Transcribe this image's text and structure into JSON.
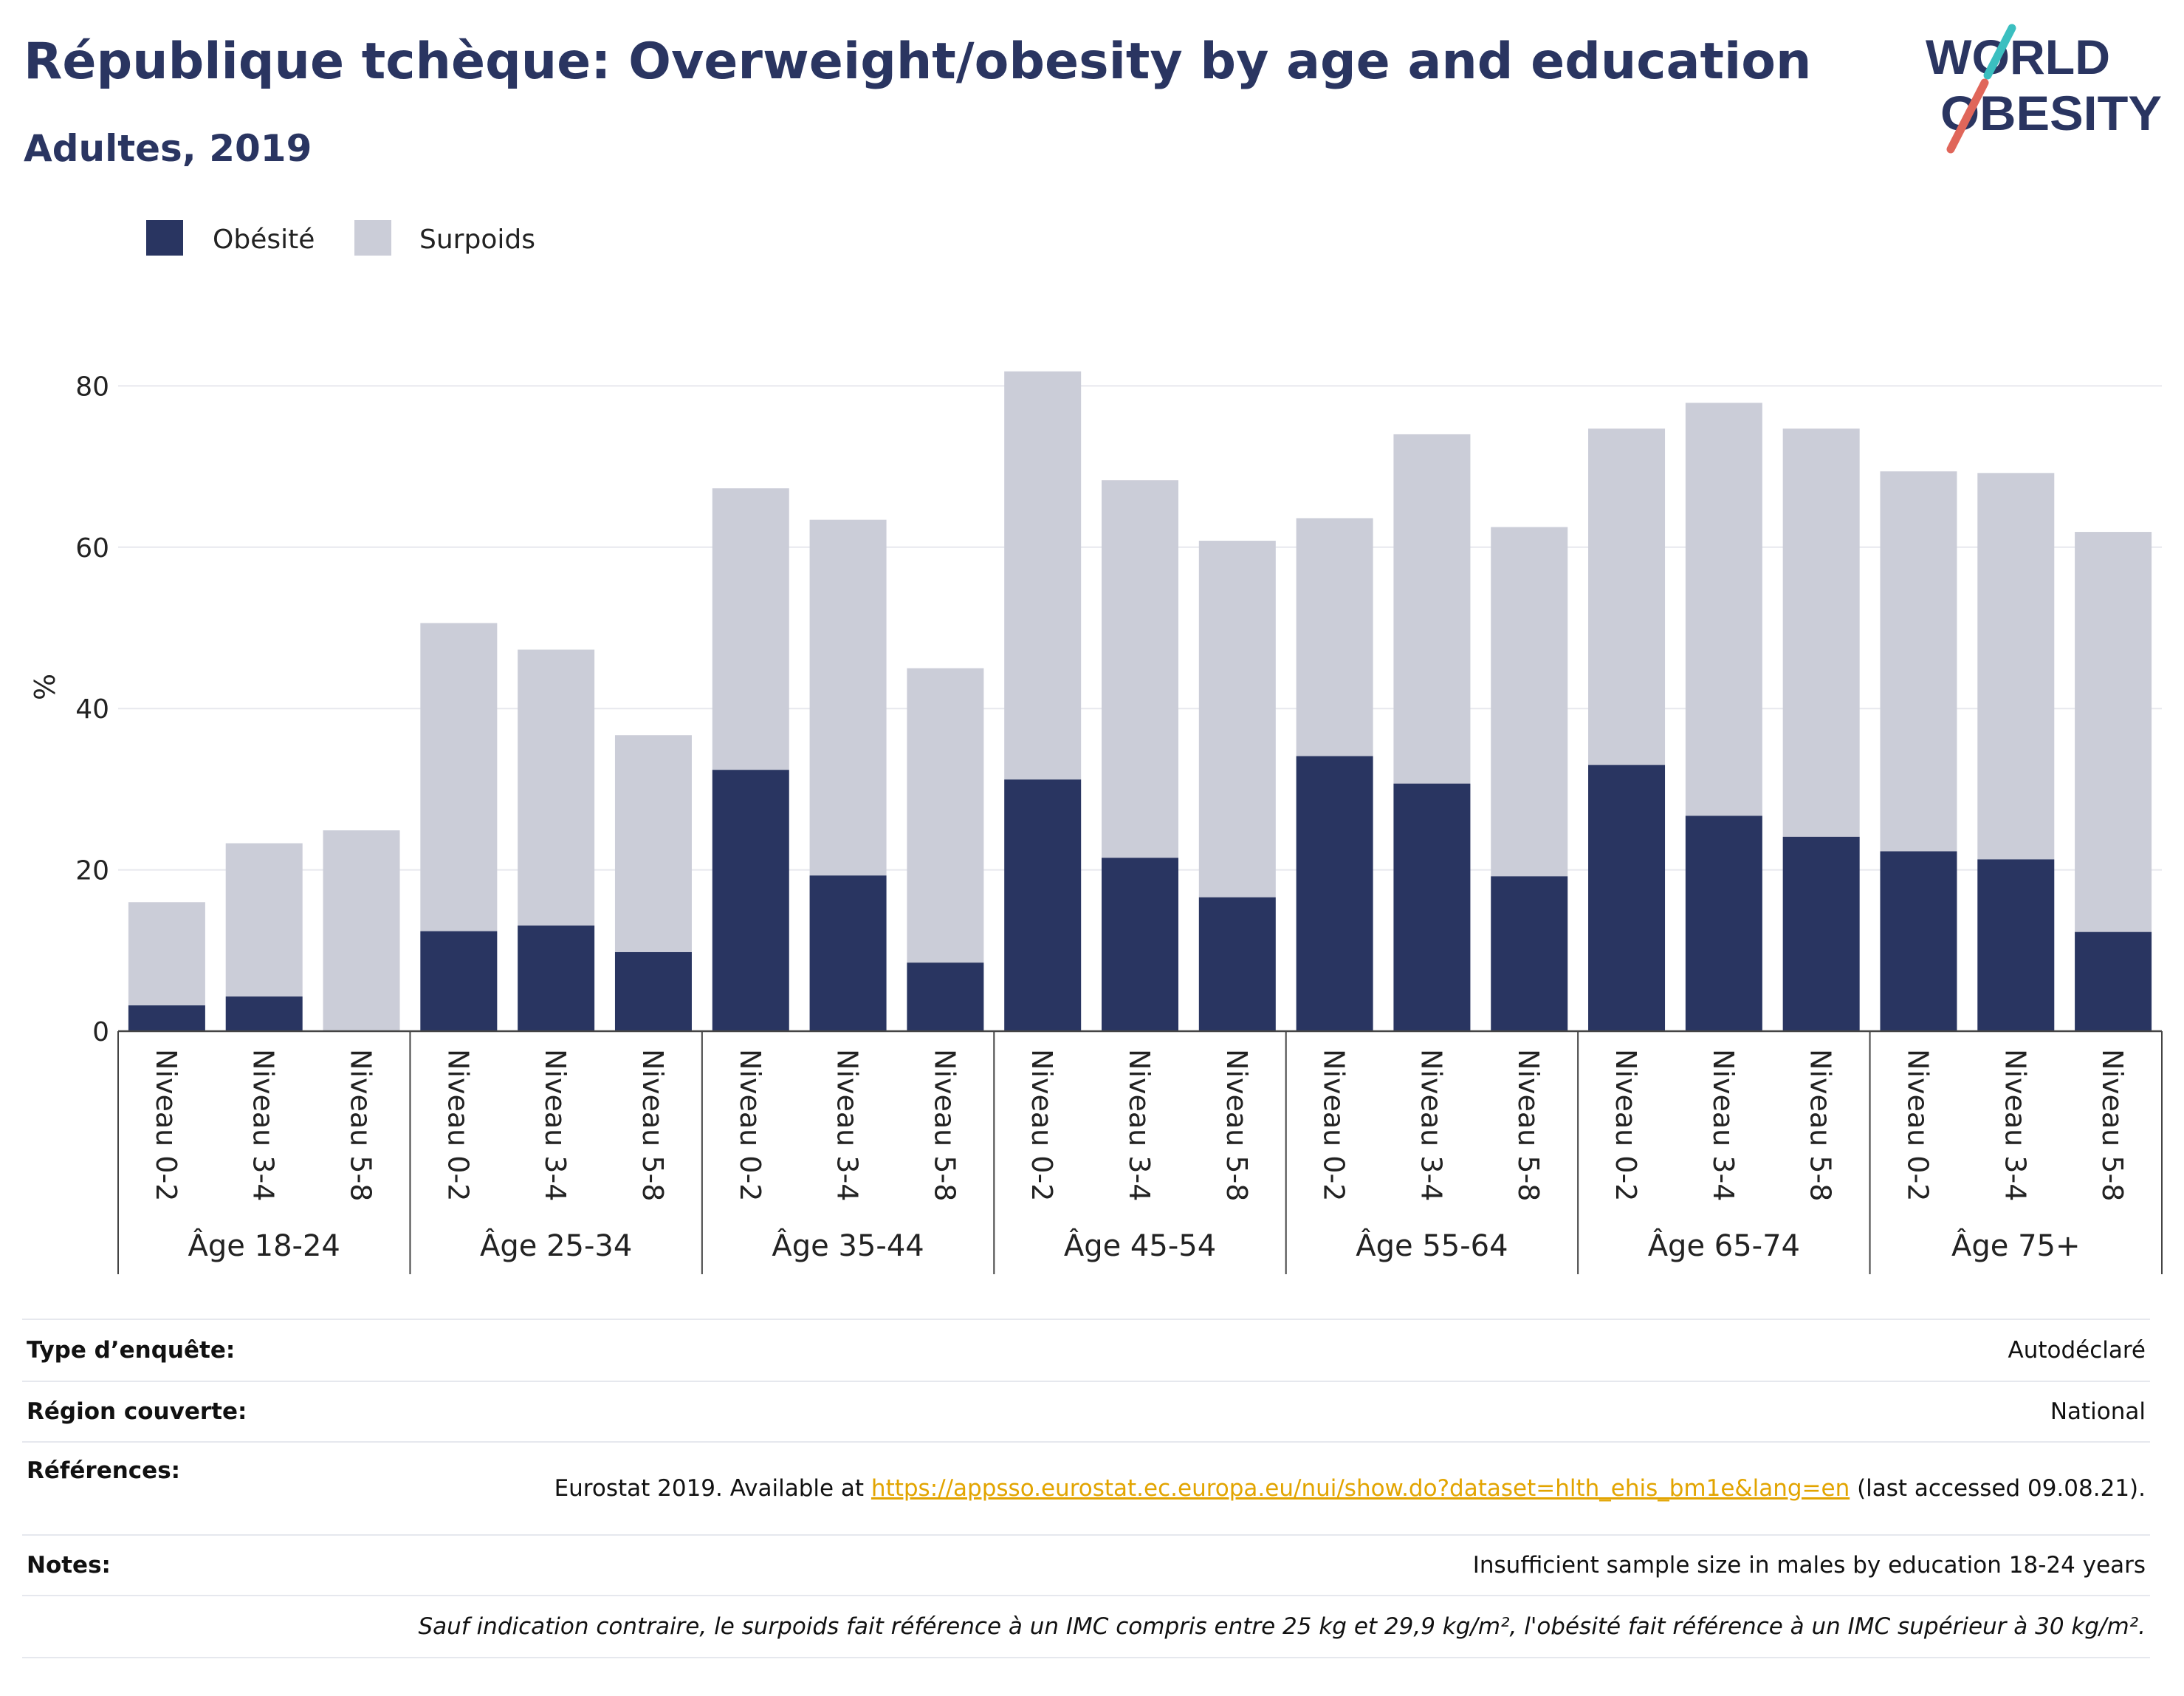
{
  "title": "République tchèque: Overweight/obesity by age and education",
  "subtitle": "Adultes, 2019",
  "logo": {
    "line1": "WORLD",
    "line2": "OBESITY"
  },
  "colors": {
    "obesity": "#293561",
    "overweight": "#cbcdd8",
    "title": "#2a3561",
    "link": "#e2a400",
    "logo_teal": "#3bbfc0",
    "logo_red": "#e0665a"
  },
  "chart_data": {
    "type": "bar",
    "stacked": true,
    "ylabel": "%",
    "ylim": [
      0,
      85
    ],
    "yticks": [
      0,
      20,
      40,
      60,
      80
    ],
    "grid": true,
    "legend_position": "top-left",
    "groups": [
      "Âge 18-24",
      "Âge 25-34",
      "Âge 35-44",
      "Âge 45-54",
      "Âge 55-64",
      "Âge 65-74",
      "Âge 75+"
    ],
    "subcategories": [
      "Niveau 0-2",
      "Niveau 3-4",
      "Niveau 5-8"
    ],
    "series": [
      {
        "name": "Obésité",
        "values": [
          [
            3.2,
            4.3,
            0
          ],
          [
            12.4,
            13.1,
            9.8
          ],
          [
            32.4,
            19.3,
            8.5
          ],
          [
            31.2,
            21.5,
            16.6
          ],
          [
            34.1,
            30.7,
            19.2
          ],
          [
            33.0,
            26.7,
            24.1
          ],
          [
            22.3,
            21.3,
            12.3
          ]
        ]
      },
      {
        "name": "Surpoids",
        "values": [
          [
            12.8,
            19.0,
            24.9
          ],
          [
            38.2,
            34.2,
            26.9
          ],
          [
            34.9,
            44.1,
            36.5
          ],
          [
            50.6,
            46.8,
            44.2
          ],
          [
            29.5,
            43.3,
            43.3
          ],
          [
            41.7,
            51.2,
            50.6
          ],
          [
            47.1,
            47.9,
            49.6
          ]
        ]
      }
    ]
  },
  "info": {
    "survey_type": {
      "label": "Type d’enquête:",
      "value": "Autodéclaré"
    },
    "region": {
      "label": "Région couverte:",
      "value": "National"
    },
    "references": {
      "label": "Références:",
      "before_link": "Eurostat 2019. Available at ",
      "link": "https://appsso.eurostat.ec.europa.eu/nui/show.do?dataset=hlth_ehis_bm1e&lang=en",
      "after_link": " (last accessed 09.08.21)."
    },
    "notes": {
      "label": "Notes:",
      "value": "Insufficient sample size in males by education 18-24 years"
    },
    "footnote": "Sauf indication contraire, le surpoids fait référence à un IMC compris entre 25 kg et 29,9 kg/m², l'obésité fait référence à un IMC supérieur à 30 kg/m²."
  }
}
